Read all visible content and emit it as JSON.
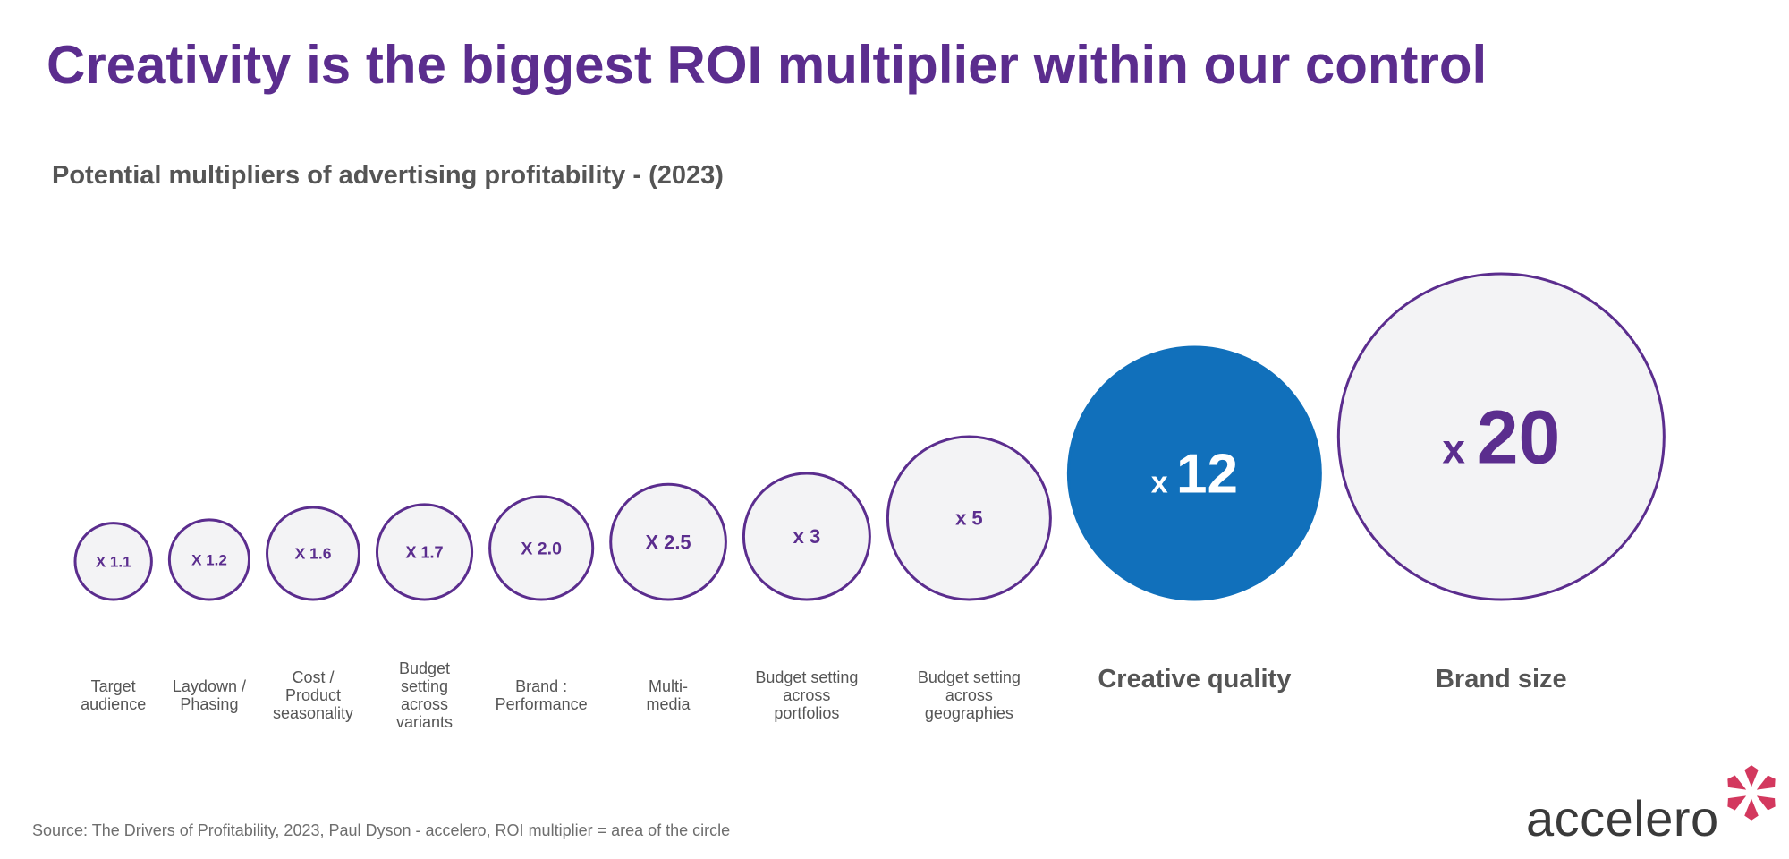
{
  "title": "Creativity is the biggest ROI multiplier within our control",
  "subtitle": "Potential multipliers  of advertising profitability  - (2023)",
  "source": "Source: The  Drivers  of Profitability,  2023, Paul Dyson  - accelero,  ROI multiplier  =  area  of the circle",
  "logo_text": "accelero",
  "colors": {
    "title": "#5b2d8e",
    "circle_stroke": "#5b2d8e",
    "circle_fill": "#f3f3f5",
    "highlight_fill": "#1170bb",
    "label": "#555555",
    "value_text": "#5b2d8e",
    "logo_accent": "#d3385e"
  },
  "chart_data": {
    "type": "bubble",
    "size_encoding": "area",
    "items": [
      {
        "category": "Target audience",
        "label_lines": [
          "Target",
          "audience"
        ],
        "value": 1.1,
        "value_text": "X 1.1"
      },
      {
        "category": "Laydown / Phasing",
        "label_lines": [
          "Laydown /",
          "Phasing"
        ],
        "value": 1.2,
        "value_text": "X 1.2"
      },
      {
        "category": "Cost / Product seasonality",
        "label_lines": [
          "Cost /",
          "Product",
          "seasonality"
        ],
        "value": 1.6,
        "value_text": "X 1.6"
      },
      {
        "category": "Budget setting across variants",
        "label_lines": [
          "Budget",
          "setting",
          "across",
          "variants"
        ],
        "value": 1.7,
        "value_text": "X 1.7"
      },
      {
        "category": "Brand : Performance",
        "label_lines": [
          "Brand :",
          "Performance"
        ],
        "value": 2.0,
        "value_text": "X 2.0"
      },
      {
        "category": "Multi-media",
        "label_lines": [
          "Multi-",
          "media"
        ],
        "value": 2.5,
        "value_text": "X 2.5"
      },
      {
        "category": "Budget setting across portfolios",
        "label_lines": [
          "Budget setting",
          "across",
          "portfolios"
        ],
        "value": 3,
        "value_text": "x 3"
      },
      {
        "category": "Budget setting across geographies",
        "label_lines": [
          "Budget setting",
          "across",
          "geographies"
        ],
        "value": 5,
        "value_text": "x 5"
      },
      {
        "category": "Creative quality",
        "label_lines": [
          "Creative quality"
        ],
        "value": 12,
        "value_text": "x 12",
        "highlight": true
      },
      {
        "category": "Brand size",
        "label_lines": [
          "Brand size"
        ],
        "value": 20,
        "value_text": "x 20"
      }
    ]
  }
}
